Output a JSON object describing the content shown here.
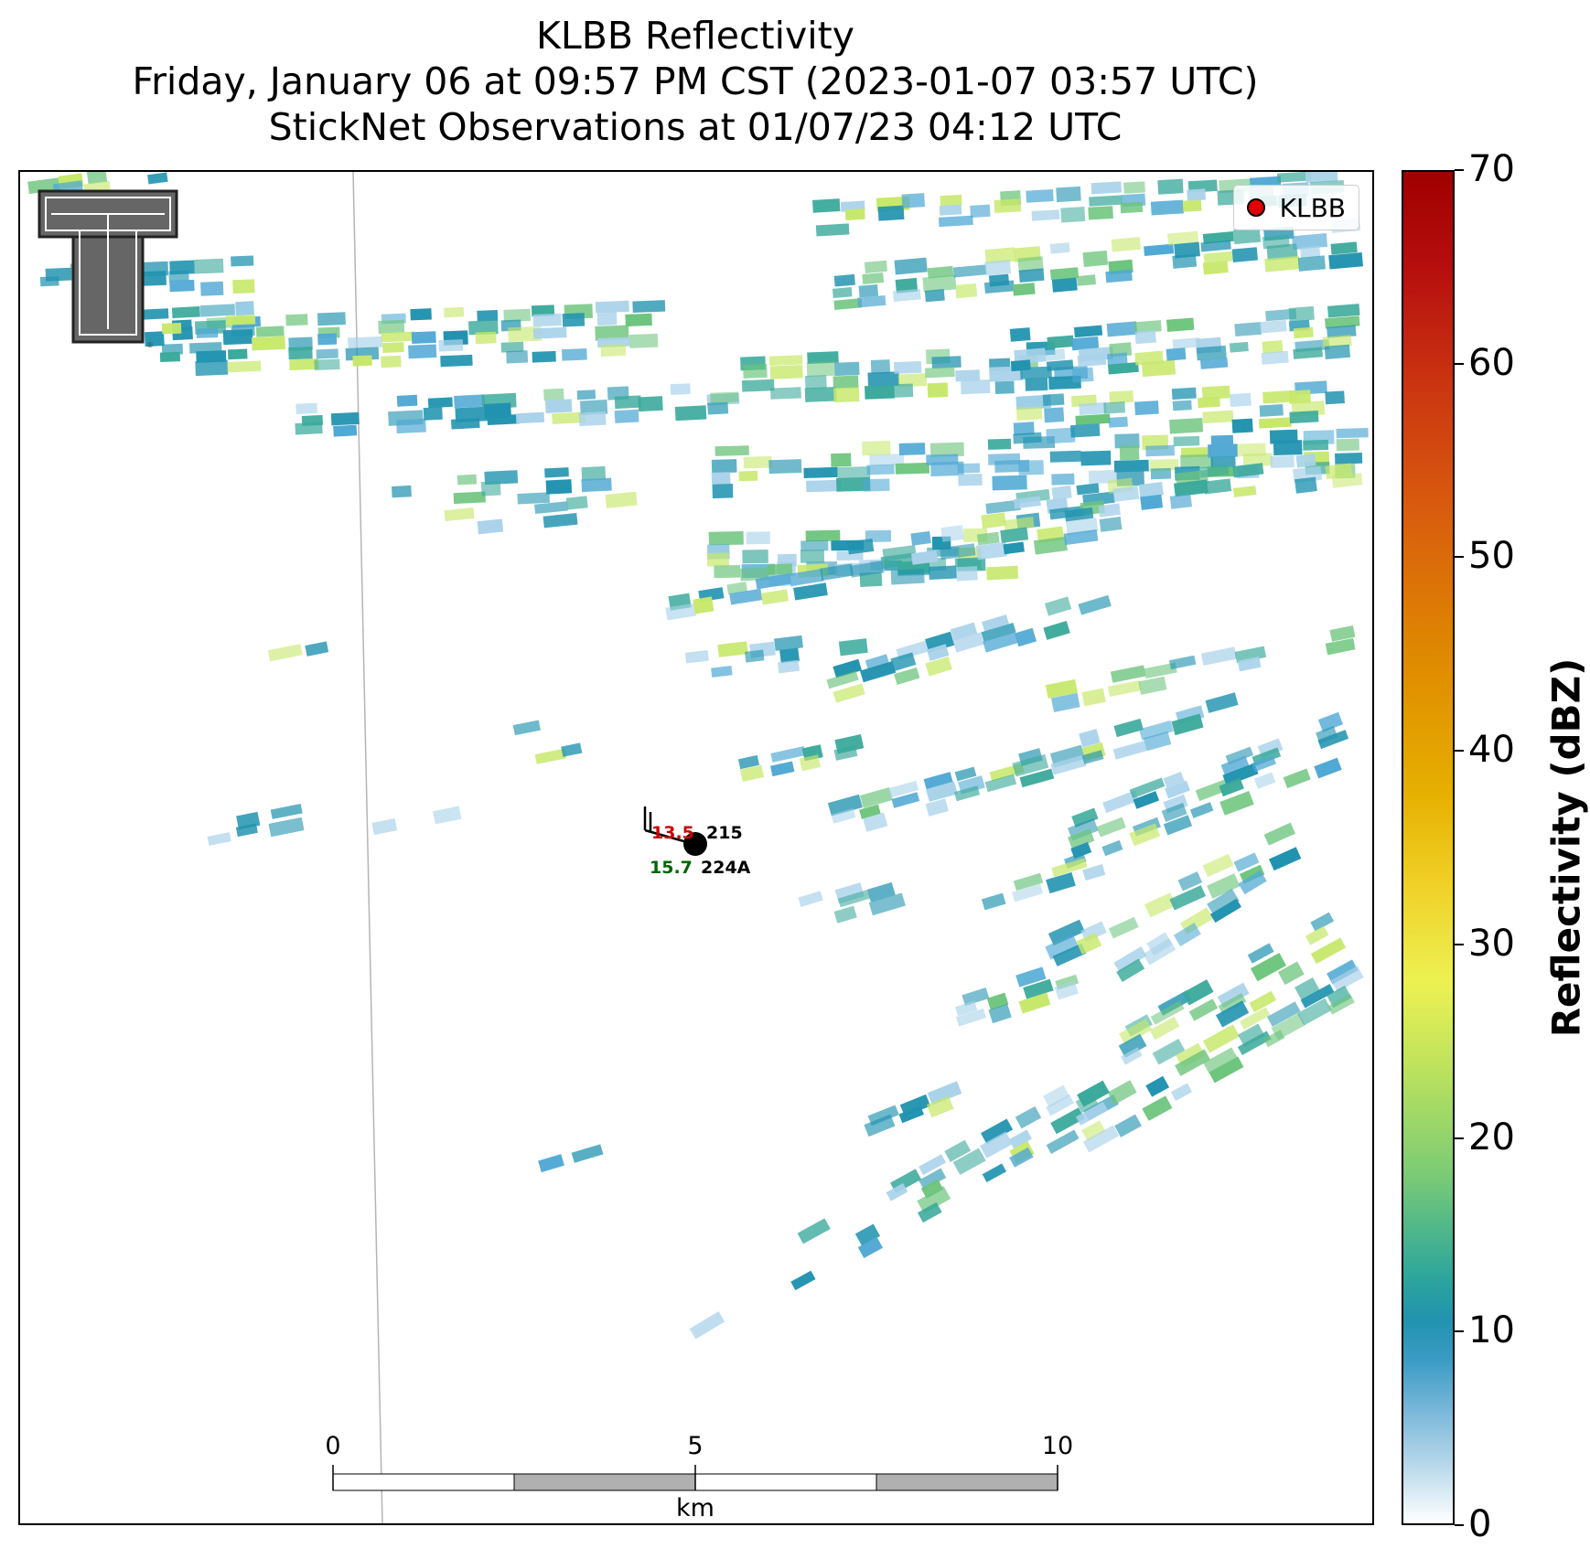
{
  "title": {
    "line1": "KLBB Reflectivity",
    "line2": "Friday, January 06 at 09:57 PM CST (2023-01-07 03:57 UTC)",
    "line3": "StickNet Observations at 01/07/23 04:12 UTC"
  },
  "legend": {
    "label": "KLBB",
    "marker_color": "#e00000"
  },
  "colorbar": {
    "label": "Reflectivity (dBZ)",
    "range": [
      0,
      70
    ],
    "ticks": [
      "0",
      "10",
      "20",
      "30",
      "40",
      "50",
      "60",
      "70"
    ]
  },
  "scalebar": {
    "ticks": [
      "0",
      "5",
      "10"
    ],
    "unit": "km"
  },
  "station": {
    "temperature": "13.5",
    "dewpoint": "15.7",
    "id_top": "215",
    "id_bottom": "224A",
    "temperature_color": "#cc0000",
    "dewpoint_color": "#006600"
  },
  "logo": {
    "text": "TT"
  },
  "colors": {
    "light_blue": "#a9d2ea",
    "blue": "#4fa8d4",
    "teal": "#2193b0",
    "teal_green": "#3aa99b",
    "green": "#6cc47c",
    "yellow_green": "#c7e86a"
  }
}
